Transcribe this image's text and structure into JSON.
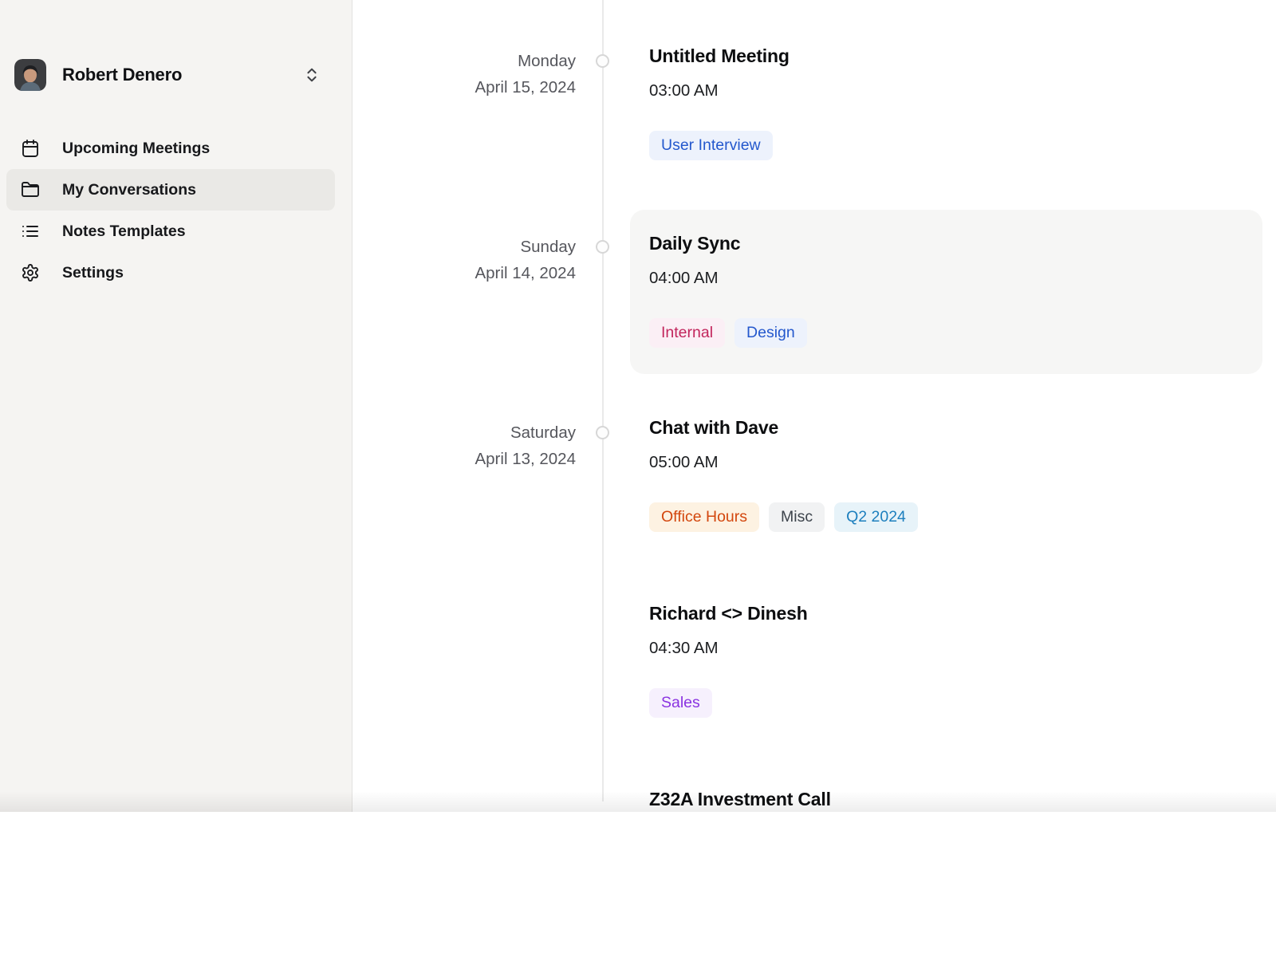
{
  "sidebar": {
    "user": {
      "name": "Robert Denero"
    },
    "items": [
      {
        "label": "Upcoming Meetings",
        "icon": "calendar-icon",
        "selected": false
      },
      {
        "label": "My Conversations",
        "icon": "folder-icon",
        "selected": true
      },
      {
        "label": "Notes Templates",
        "icon": "list-icon",
        "selected": false
      },
      {
        "label": "Settings",
        "icon": "gear-icon",
        "selected": false
      }
    ]
  },
  "timeline": {
    "rows": [
      {
        "day": "Monday",
        "date": "April 15, 2024",
        "title": "Untitled Meeting",
        "time": "03:00 AM",
        "highlighted": false,
        "tags": [
          {
            "label": "User Interview",
            "color": "blue"
          }
        ]
      },
      {
        "day": "Sunday",
        "date": "April 14, 2024",
        "title": "Daily Sync",
        "time": "04:00 AM",
        "highlighted": true,
        "tags": [
          {
            "label": "Internal",
            "color": "pink"
          },
          {
            "label": "Design",
            "color": "blue"
          }
        ]
      },
      {
        "day": "Saturday",
        "date": "April 13, 2024",
        "title": "Chat with Dave",
        "time": "05:00 AM",
        "highlighted": false,
        "tags": [
          {
            "label": "Office Hours",
            "color": "orange"
          },
          {
            "label": "Misc",
            "color": "gray"
          },
          {
            "label": "Q2 2024",
            "color": "cyan"
          }
        ]
      },
      {
        "title": "Richard <> Dinesh",
        "time": "04:30 AM",
        "highlighted": false,
        "tags": [
          {
            "label": "Sales",
            "color": "purple"
          }
        ]
      },
      {
        "title": "Z32A Investment Call",
        "highlighted": false,
        "tags": []
      }
    ]
  },
  "tag_colors": {
    "blue": {
      "fg": "#2458cd",
      "bg": "#edf2fc"
    },
    "pink": {
      "fg": "#c2255c",
      "bg": "#fbeff5"
    },
    "orange": {
      "fg": "#d3470e",
      "bg": "#fdf2e2"
    },
    "gray": {
      "fg": "#3c434b",
      "bg": "#f1f2f3"
    },
    "cyan": {
      "fg": "#1d7fbe",
      "bg": "#e7f3f9"
    },
    "purple": {
      "fg": "#8a33e1",
      "bg": "#f6f0fd"
    }
  }
}
